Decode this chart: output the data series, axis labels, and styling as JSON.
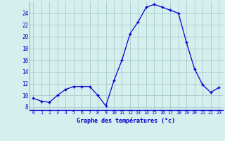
{
  "x": [
    0,
    1,
    2,
    3,
    4,
    5,
    6,
    7,
    8,
    9,
    10,
    11,
    12,
    13,
    14,
    15,
    16,
    17,
    18,
    19,
    20,
    21,
    22,
    23
  ],
  "y": [
    9.5,
    9.0,
    8.8,
    10.0,
    11.0,
    11.5,
    11.5,
    11.5,
    10.0,
    8.2,
    12.5,
    16.0,
    20.5,
    22.5,
    25.0,
    25.5,
    25.0,
    24.5,
    24.0,
    19.0,
    14.5,
    11.8,
    10.5,
    11.3
  ],
  "line_color": "#0000cc",
  "marker": "+",
  "marker_size": 3,
  "bg_color": "#d5eeee",
  "grid_color": "#a8cccc",
  "xlabel": "Graphe des températures (°c)",
  "xlabel_color": "#0000cc",
  "tick_color": "#0000cc",
  "ylim": [
    7.5,
    26.0
  ],
  "xlim": [
    -0.5,
    23.5
  ],
  "yticks": [
    8,
    10,
    12,
    14,
    16,
    18,
    20,
    22,
    24
  ],
  "xticks": [
    0,
    1,
    2,
    3,
    4,
    5,
    6,
    7,
    8,
    9,
    10,
    11,
    12,
    13,
    14,
    15,
    16,
    17,
    18,
    19,
    20,
    21,
    22,
    23
  ],
  "xtick_labels": [
    "0",
    "1",
    "2",
    "3",
    "4",
    "5",
    "6",
    "7",
    "8",
    "9",
    "10",
    "11",
    "12",
    "13",
    "14",
    "15",
    "16",
    "17",
    "18",
    "19",
    "20",
    "21",
    "22",
    "23"
  ]
}
